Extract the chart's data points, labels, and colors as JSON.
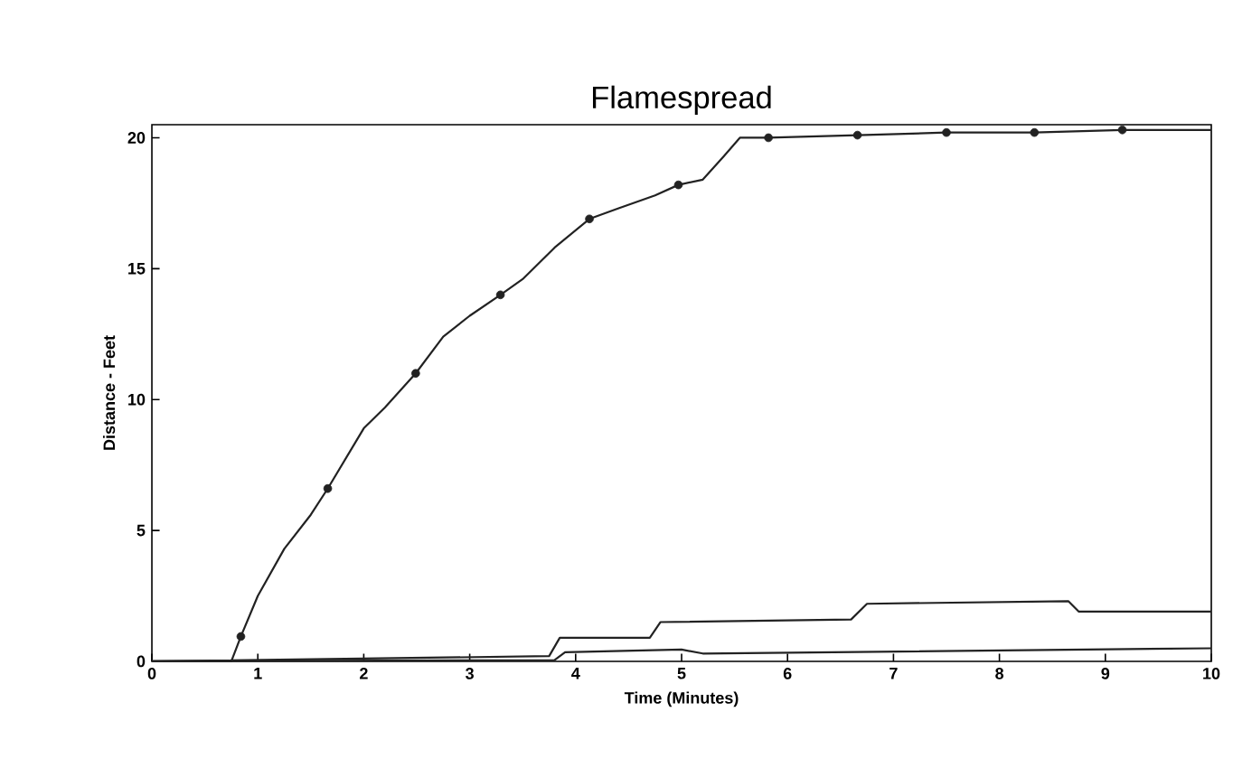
{
  "chart_data": {
    "type": "line",
    "title": "Flamespread",
    "xlabel": "Time (Minutes)",
    "ylabel": "Distance - Feet",
    "xlim": [
      0,
      10
    ],
    "ylim": [
      0,
      20.5
    ],
    "xticks": [
      0,
      1,
      2,
      3,
      4,
      5,
      6,
      7,
      8,
      9,
      10
    ],
    "yticks": [
      0,
      5,
      10,
      15,
      20
    ],
    "line_style": "solid",
    "series": [
      {
        "color": "#222222",
        "marker": "none",
        "x": [
          0,
          0.75,
          0.84,
          1.0,
          1.25,
          1.5,
          1.66,
          2.0,
          2.2,
          2.49,
          2.75,
          3.0,
          3.29,
          3.5,
          3.8,
          4.13,
          4.4,
          4.75,
          4.97,
          5.2,
          5.4,
          5.55,
          5.82,
          6.66,
          7.5,
          8.33,
          9.16,
          10
        ],
        "values": [
          0,
          0,
          0.95,
          2.5,
          4.3,
          5.6,
          6.6,
          8.9,
          9.7,
          11.0,
          12.4,
          13.2,
          14.0,
          14.6,
          15.8,
          16.9,
          17.3,
          17.8,
          18.2,
          18.4,
          19.3,
          20.0,
          20.0,
          20.1,
          20.2,
          20.2,
          20.3,
          20.3
        ]
      },
      {
        "type": "scatter",
        "color": "#222222",
        "marker": "circle",
        "x": [
          0.84,
          1.66,
          2.49,
          3.29,
          4.13,
          4.97,
          5.82,
          6.66,
          7.5,
          8.33,
          9.16
        ],
        "values": [
          0.95,
          6.6,
          11.0,
          14.0,
          16.9,
          18.2,
          20.0,
          20.1,
          20.2,
          20.2,
          20.3
        ]
      },
      {
        "color": "#222222",
        "marker": "none",
        "x": [
          0,
          3.75,
          3.85,
          4.7,
          4.8,
          6.6,
          6.75,
          8.65,
          8.75,
          10
        ],
        "values": [
          0,
          0.2,
          0.9,
          0.9,
          1.5,
          1.6,
          2.2,
          2.3,
          1.9,
          1.9
        ]
      },
      {
        "color": "#222222",
        "marker": "none",
        "x": [
          0,
          3.8,
          3.9,
          5.0,
          5.2,
          10
        ],
        "values": [
          0,
          0.05,
          0.35,
          0.45,
          0.3,
          0.5
        ]
      }
    ]
  }
}
